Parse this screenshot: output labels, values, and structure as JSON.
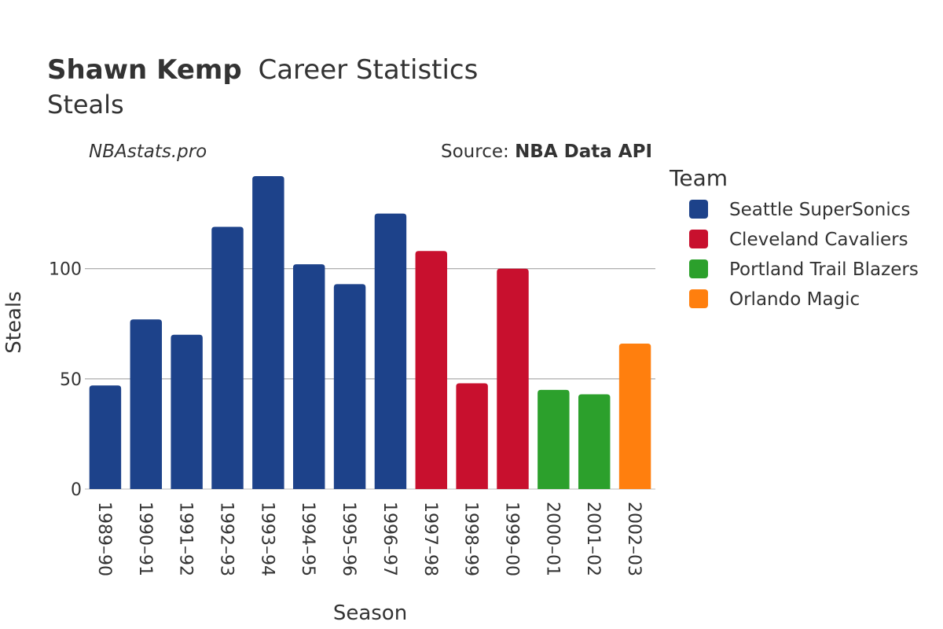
{
  "chart_data": {
    "type": "bar",
    "title_bold": "Shawn Kemp",
    "title_rest": "Career Statistics",
    "subtitle": "Steals",
    "watermark": "NBAstats.pro",
    "source_prefix": "Source: ",
    "source_name": "NBA Data API",
    "xlabel": "Season",
    "ylabel": "Steals",
    "ylim": [
      0,
      150
    ],
    "yticks": [
      0,
      50,
      100
    ],
    "grid": true,
    "legend_title": "Team",
    "legend_position": "right",
    "categories": [
      "1989–90",
      "1990–91",
      "1991–92",
      "1992–93",
      "1993–94",
      "1994–95",
      "1995–96",
      "1996–97",
      "1997–98",
      "1998–99",
      "1999–00",
      "2000–01",
      "2001–02",
      "2002–03"
    ],
    "values": [
      47,
      77,
      70,
      119,
      142,
      102,
      93,
      125,
      108,
      48,
      100,
      45,
      43,
      66
    ],
    "teams": [
      0,
      0,
      0,
      0,
      0,
      0,
      0,
      0,
      1,
      1,
      1,
      2,
      2,
      3
    ],
    "series": [
      {
        "name": "Seattle SuperSonics",
        "color": "#1d428a"
      },
      {
        "name": "Cleveland Cavaliers",
        "color": "#c8102e"
      },
      {
        "name": "Portland Trail Blazers",
        "color": "#2ca02c"
      },
      {
        "name": "Orlando Magic",
        "color": "#ff7f0e"
      }
    ]
  }
}
